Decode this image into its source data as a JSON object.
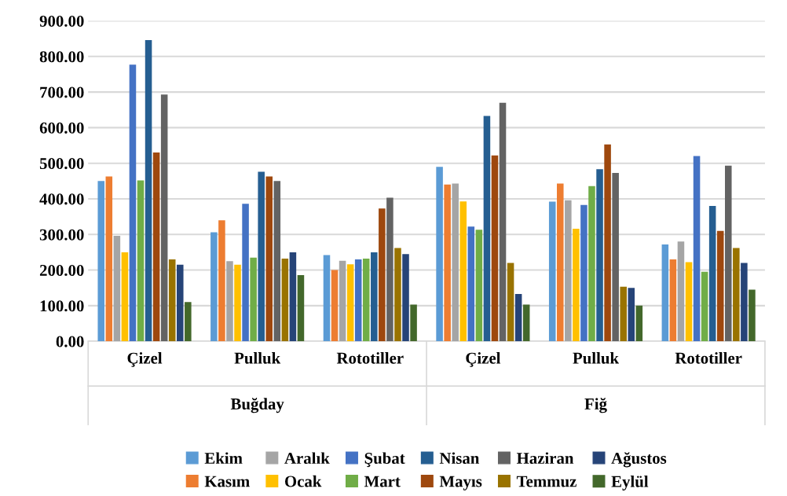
{
  "chart_data": {
    "type": "bar",
    "categories": [
      "Çizel",
      "Pulluk",
      "Rototiller",
      "Çizel",
      "Pulluk",
      "Rototiller"
    ],
    "annotations": [
      "Buğday",
      "Fiğ"
    ],
    "series": [
      {
        "name": "Ekim",
        "color": "#5b9bd5",
        "values": [
          450,
          306,
          242,
          490,
          392,
          272
        ]
      },
      {
        "name": "Kasım",
        "color": "#ed7d31",
        "values": [
          463,
          340,
          200,
          440,
          443,
          230
        ]
      },
      {
        "name": "Aralık",
        "color": "#a5a5a5",
        "values": [
          296,
          225,
          226,
          443,
          396,
          280
        ]
      },
      {
        "name": "Ocak",
        "color": "#ffc000",
        "values": [
          250,
          215,
          216,
          393,
          316,
          222
        ]
      },
      {
        "name": "Şubat",
        "color": "#4472c4",
        "values": [
          777,
          386,
          230,
          322,
          383,
          520
        ]
      },
      {
        "name": "Mart",
        "color": "#70ad47",
        "values": [
          452,
          235,
          232,
          313,
          436,
          195
        ]
      },
      {
        "name": "Nisan",
        "color": "#255e91",
        "values": [
          846,
          476,
          250,
          633,
          483,
          380
        ]
      },
      {
        "name": "Mayıs",
        "color": "#9e480e",
        "values": [
          530,
          463,
          373,
          522,
          553,
          310
        ]
      },
      {
        "name": "Haziran",
        "color": "#636363",
        "values": [
          693,
          450,
          403,
          670,
          473,
          493
        ]
      },
      {
        "name": "Temmuz",
        "color": "#997300",
        "values": [
          230,
          232,
          262,
          220,
          153,
          262
        ]
      },
      {
        "name": "Ağustos",
        "color": "#264478",
        "values": [
          215,
          250,
          245,
          133,
          150,
          220
        ]
      },
      {
        "name": "Eylül",
        "color": "#43682b",
        "values": [
          110,
          186,
          103,
          103,
          100,
          145
        ]
      }
    ],
    "ylim": [
      0,
      900
    ],
    "yticks": [
      {
        "value": 0,
        "label": "0.00"
      },
      {
        "value": 100,
        "label": "100.00"
      },
      {
        "value": 200,
        "label": "200.00"
      },
      {
        "value": 300,
        "label": "300.00"
      },
      {
        "value": 400,
        "label": "400.00"
      },
      {
        "value": 500,
        "label": "500.00"
      },
      {
        "value": 600,
        "label": "600.00"
      },
      {
        "value": 700,
        "label": "700.00"
      },
      {
        "value": 800,
        "label": "800.00"
      },
      {
        "value": 900,
        "label": "900.00"
      }
    ],
    "grid": "y",
    "legend": "bottom"
  }
}
